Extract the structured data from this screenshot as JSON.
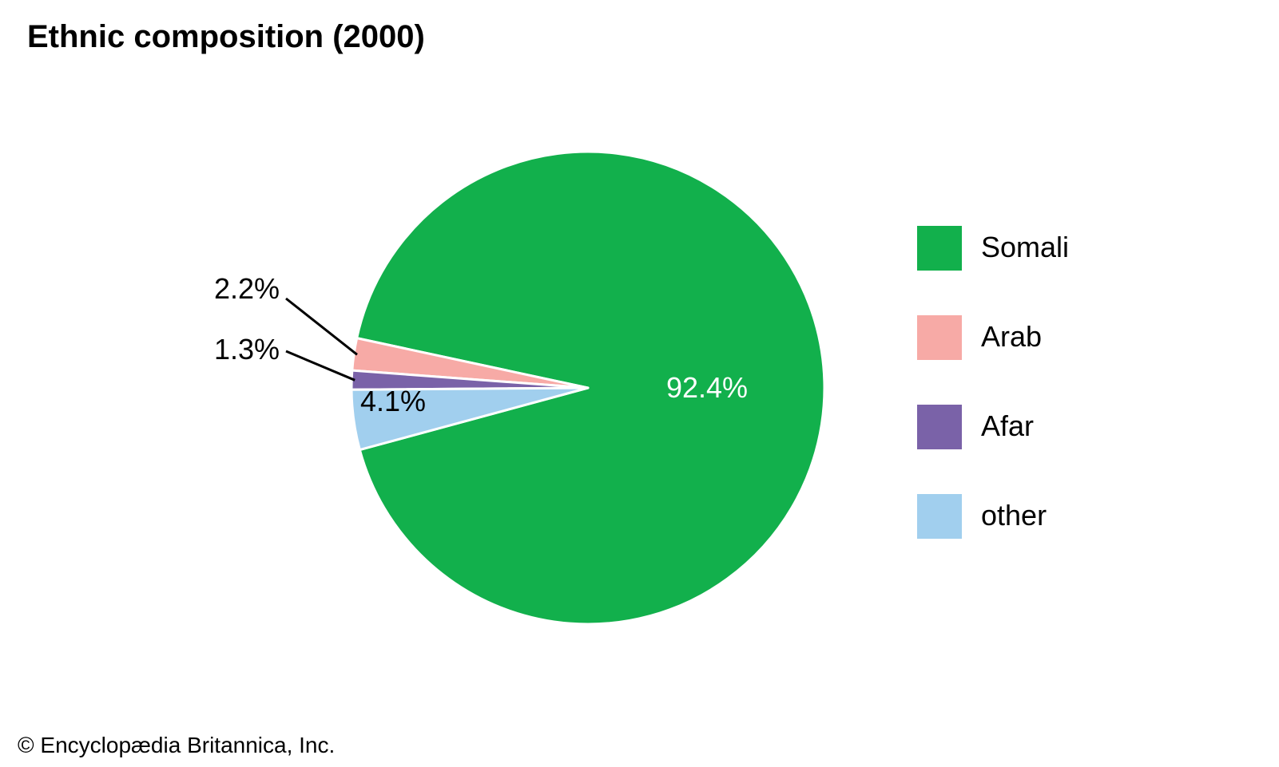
{
  "chart_data": {
    "type": "pie",
    "title": "Ethnic composition (2000)",
    "categories": [
      "Somali",
      "Arab",
      "Afar",
      "other"
    ],
    "values": [
      92.4,
      2.2,
      1.3,
      4.1
    ],
    "value_labels": [
      "92.4%",
      "2.2%",
      "1.3%",
      "4.1%"
    ],
    "colors": [
      "#12b04c",
      "#f7aaa6",
      "#7a62a8",
      "#a1cfee"
    ],
    "label_colors": [
      "#ffffff",
      "#000000",
      "#000000",
      "#000000"
    ],
    "legend_position": "right"
  },
  "footer": {
    "copyright": "© Encyclopædia Britannica, Inc."
  }
}
